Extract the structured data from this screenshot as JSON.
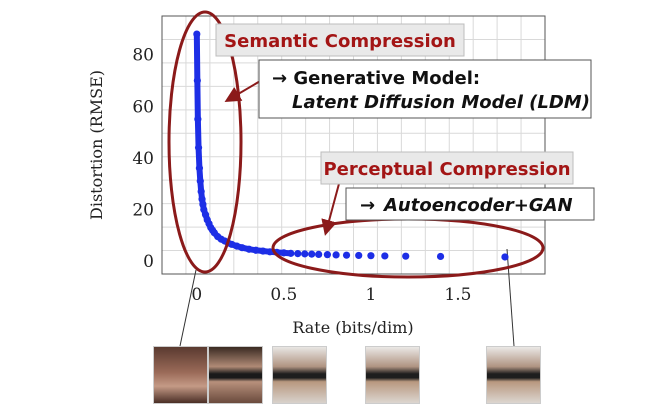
{
  "chart_data": {
    "type": "scatter",
    "xlabel": "Rate (bits/dim)",
    "ylabel": "Distortion (RMSE)",
    "xlim": [
      -0.2,
      2.0
    ],
    "ylim": [
      -5,
      95
    ],
    "x_ticks": [
      "0",
      "0.5",
      "1",
      "1.5"
    ],
    "x_tick_values": [
      0,
      0.5,
      1,
      1.5
    ],
    "y_ticks": [
      "0",
      "20",
      "40",
      "60",
      "80"
    ],
    "y_tick_values": [
      0,
      20,
      40,
      60,
      80
    ],
    "grid": true,
    "series": [
      {
        "color": "#1d2ee6",
        "x": [
          0,
          0.003,
          0.006,
          0.01,
          0.015,
          0.02,
          0.025,
          0.03,
          0.035,
          0.04,
          0.05,
          0.06,
          0.07,
          0.08,
          0.09,
          0.1,
          0.12,
          0.14,
          0.16,
          0.18,
          0.2,
          0.23,
          0.26,
          0.3,
          0.34,
          0.38,
          0.42,
          0.46,
          0.5,
          0.54,
          0.58,
          0.62,
          0.66,
          0.7,
          0.75,
          0.8,
          0.86,
          0.93,
          1.0,
          1.08,
          1.2,
          1.4,
          1.77
        ],
        "y": [
          88,
          70,
          55,
          44,
          36,
          31,
          27,
          24,
          22,
          20,
          18,
          16,
          14.5,
          13,
          12,
          11,
          9.5,
          8.5,
          7.8,
          7,
          6.5,
          5.8,
          5.2,
          4.6,
          4.2,
          3.9,
          3.6,
          3.4,
          3.2,
          3.0,
          2.9,
          2.8,
          2.7,
          2.6,
          2.5,
          2.4,
          2.3,
          2.2,
          2.1,
          2.0,
          1.9,
          1.8,
          1.6
        ]
      }
    ],
    "annotations": {
      "semantic": {
        "label": "Semantic Compression",
        "detail_prefix": "→ Generative Model:",
        "detail_emph": "Latent Diffusion Model (LDM)"
      },
      "perceptual": {
        "label": "Perceptual Compression",
        "detail_prefix": "→",
        "detail_emph": "Autoencoder+GAN"
      }
    },
    "colors": {
      "marker": "#1d2ee6",
      "ellipse": "#8b1a1a",
      "label_text": "#a31515",
      "label_bg": "#e9e9e9",
      "grid": "#d9d9d9"
    }
  },
  "thumbnails": [
    {
      "name": "thumb-woman-face",
      "color": "#8a5a4a"
    },
    {
      "name": "thumb-man-sunglasses-1",
      "color": "#6b4a3a"
    },
    {
      "name": "thumb-man-sunglasses-2",
      "color": "#7d6a5a"
    },
    {
      "name": "thumb-man-sunglasses-3",
      "color": "#7d6a5a"
    },
    {
      "name": "thumb-man-sunglasses-4",
      "color": "#7d6a5a"
    }
  ]
}
